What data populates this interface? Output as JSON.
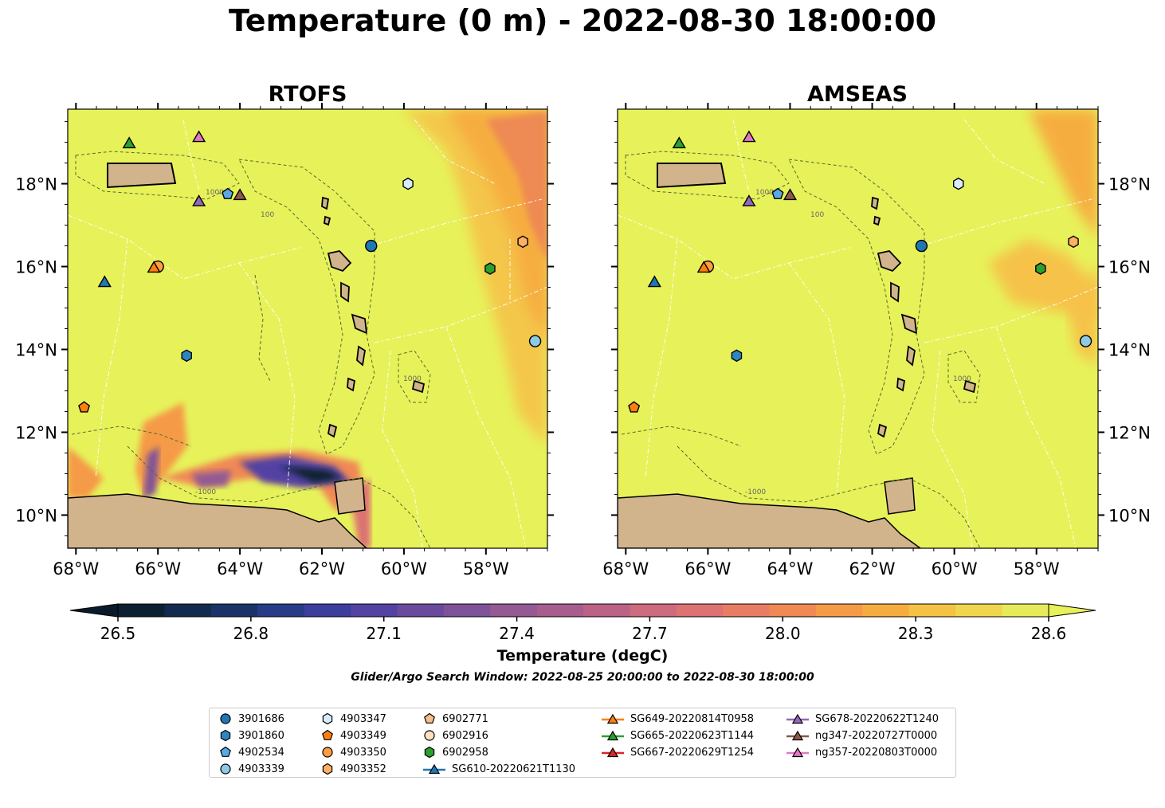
{
  "title": "Temperature (0 m) - 2022-08-30 18:00:00",
  "chart_data": {
    "type": "map",
    "panels": [
      {
        "title": "RTOFS"
      },
      {
        "title": "AMSEAS"
      }
    ],
    "lon_ticks": [
      "68°W",
      "66°W",
      "64°W",
      "62°W",
      "60°W",
      "58°W"
    ],
    "lat_ticks": [
      "10°N",
      "12°N",
      "14°N",
      "16°N",
      "18°N"
    ],
    "lon_range": [
      -68.2,
      -56.5
    ],
    "lat_range": [
      9.2,
      19.8
    ],
    "contour_labels": [
      "1000",
      "100",
      "-1000"
    ],
    "colorbar": {
      "label": "Temperature (degC)",
      "ticks": [
        "26.5",
        "26.8",
        "27.1",
        "27.4",
        "27.7",
        "28.0",
        "28.3",
        "28.6"
      ],
      "range": [
        26.5,
        28.6
      ],
      "colors": [
        "#0c2032",
        "#122a4d",
        "#1b3268",
        "#283b87",
        "#3c3e9e",
        "#5342a2",
        "#6a4a9c",
        "#7e5298",
        "#935a93",
        "#a75d8e",
        "#bb6287",
        "#cd6a7e",
        "#dc7272",
        "#e87d63",
        "#f08954",
        "#f59a46",
        "#f6ad40",
        "#f4c244",
        "#efd64d",
        "#e7ea59"
      ]
    },
    "stations": [
      {
        "id": "3901686",
        "lon": -60.8,
        "lat": 16.5,
        "marker": "circle",
        "color": "#1f77b4"
      },
      {
        "id": "3901860",
        "lon": -65.3,
        "lat": 13.85,
        "marker": "hexagon",
        "color": "#2e86c1"
      },
      {
        "id": "4902534",
        "lon": -64.3,
        "lat": 17.75,
        "marker": "pentagon",
        "color": "#5aa9e6"
      },
      {
        "id": "4903339",
        "lon": -56.8,
        "lat": 14.2,
        "marker": "circle",
        "color": "#8ecae6"
      },
      {
        "id": "4903347",
        "lon": -59.9,
        "lat": 18.0,
        "marker": "hexagon",
        "color": "#d6ecfa"
      },
      {
        "id": "4903349",
        "lon": -67.8,
        "lat": 12.6,
        "marker": "pentagon",
        "color": "#ff7f0e"
      },
      {
        "id": "4903350",
        "lon": -66.0,
        "lat": 16.0,
        "marker": "circle",
        "color": "#ff9f40"
      },
      {
        "id": "4903352",
        "lon": -57.1,
        "lat": 16.6,
        "marker": "hexagon",
        "color": "#ffb060"
      },
      {
        "id": "6902771",
        "lon": 0,
        "lat": 0,
        "marker": "pentagon",
        "color": "#f5c08a",
        "shown": false
      },
      {
        "id": "6902916",
        "lon": 0,
        "lat": 0,
        "marker": "circle",
        "color": "#fde0c2",
        "shown": false
      },
      {
        "id": "6902958",
        "lon": -57.9,
        "lat": 15.95,
        "marker": "hexagon",
        "color": "#2ca02c"
      }
    ],
    "gliders": [
      {
        "id": "SG610-20220621T1130",
        "lon": -67.3,
        "lat": 15.6,
        "color": "#1f77b4"
      },
      {
        "id": "SG649-20220814T0958",
        "lon": -66.1,
        "lat": 15.95,
        "color": "#ff7f0e"
      },
      {
        "id": "SG665-20220623T1144",
        "lon": -66.7,
        "lat": 18.95,
        "color": "#2ca02c"
      },
      {
        "id": "SG667-20220629T1254",
        "lon": 0,
        "lat": 0,
        "color": "#d62728",
        "shown": false
      },
      {
        "id": "SG678-20220622T1240",
        "lon": -65.0,
        "lat": 17.55,
        "color": "#9467bd"
      },
      {
        "id": "ng347-20220727T0000",
        "lon": -64.0,
        "lat": 17.7,
        "color": "#8c564b"
      },
      {
        "id": "ng357-20220803T0000",
        "lon": -65.0,
        "lat": 19.1,
        "color": "#e377c2"
      }
    ],
    "search_window": "Glider/Argo Search Window: 2022-08-25 20:00:00 to 2022-08-30 18:00:00"
  }
}
